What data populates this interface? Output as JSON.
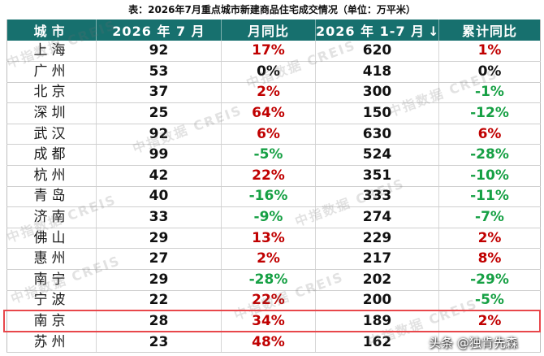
{
  "chart_data": {
    "type": "table",
    "title": "表：2026年7月重点城市新建商品住宅成交情况（单位：万平米）",
    "columns": [
      "城市",
      "2026 年 7 月",
      "月同比",
      "2026 年 1-7 月",
      "累计同比"
    ],
    "sort_indicator": "↓",
    "sort_icon": "arrow-down-icon",
    "rows": [
      {
        "city": "上海",
        "month": 92,
        "month_yoy": "17%",
        "ytd": 620,
        "ytd_yoy": "1%"
      },
      {
        "city": "广州",
        "month": 53,
        "month_yoy": "0%",
        "ytd": 418,
        "ytd_yoy": "0%"
      },
      {
        "city": "北京",
        "month": 37,
        "month_yoy": "2%",
        "ytd": 300,
        "ytd_yoy": "-1%"
      },
      {
        "city": "深圳",
        "month": 25,
        "month_yoy": "64%",
        "ytd": 150,
        "ytd_yoy": "-12%"
      },
      {
        "city": "武汉",
        "month": 92,
        "month_yoy": "6%",
        "ytd": 630,
        "ytd_yoy": "6%"
      },
      {
        "city": "成都",
        "month": 99,
        "month_yoy": "-5%",
        "ytd": 524,
        "ytd_yoy": "-28%"
      },
      {
        "city": "杭州",
        "month": 42,
        "month_yoy": "22%",
        "ytd": 351,
        "ytd_yoy": "-10%"
      },
      {
        "city": "青岛",
        "month": 40,
        "month_yoy": "-16%",
        "ytd": 333,
        "ytd_yoy": "-11%"
      },
      {
        "city": "济南",
        "month": 33,
        "month_yoy": "-9%",
        "ytd": 274,
        "ytd_yoy": "-7%"
      },
      {
        "city": "佛山",
        "month": 29,
        "month_yoy": "13%",
        "ytd": 229,
        "ytd_yoy": "2%"
      },
      {
        "city": "惠州",
        "month": 27,
        "month_yoy": "2%",
        "ytd": 217,
        "ytd_yoy": "8%"
      },
      {
        "city": "南宁",
        "month": 29,
        "month_yoy": "-28%",
        "ytd": 202,
        "ytd_yoy": "-29%"
      },
      {
        "city": "宁波",
        "month": 22,
        "month_yoy": "22%",
        "ytd": 200,
        "ytd_yoy": "-5%"
      },
      {
        "city": "南京",
        "month": 28,
        "month_yoy": "34%",
        "ytd": 189,
        "ytd_yoy": "2%",
        "highlighted": true
      },
      {
        "city": "苏州",
        "month": 23,
        "month_yoy": "48%",
        "ytd": 162,
        "ytd_yoy": ""
      }
    ]
  },
  "colors": {
    "header_bg": "#17706e",
    "up": "#c00000",
    "down": "#16a044",
    "flat": "#111111",
    "highlight_border": "#e8474b"
  },
  "watermark": {
    "text": "中指数据 CREIS"
  },
  "credit": "头条 @独肯先森"
}
